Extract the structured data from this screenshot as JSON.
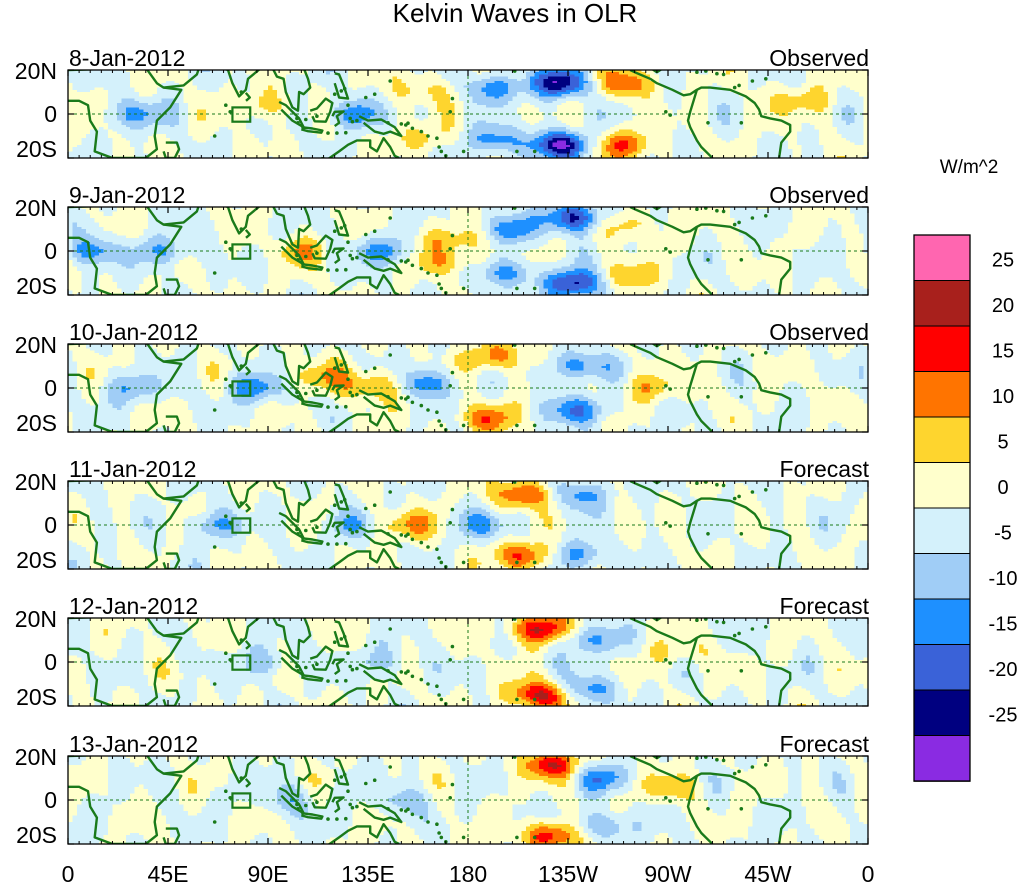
{
  "chart_data": {
    "type": "heatmap",
    "title": "Kelvin Waves in OLR",
    "variable": "OLR anomaly filtered for Kelvin waves",
    "units": "W/m^2",
    "x_ticks": [
      "0",
      "45E",
      "90E",
      "135E",
      "180",
      "135W",
      "90W",
      "45W",
      "0"
    ],
    "x_tick_lon": [
      0,
      45,
      90,
      135,
      180,
      225,
      270,
      315,
      360
    ],
    "y_ticks": [
      "20N",
      "0",
      "20S"
    ],
    "y_tick_lat": [
      20,
      0,
      -20
    ],
    "xlim": [
      0,
      360
    ],
    "ylim": [
      -20,
      20
    ],
    "reference_lines": [
      "equator (dashed)",
      "180 meridian (dashed)"
    ],
    "panels": [
      {
        "date": "8-Jan-2012",
        "status": "Observed",
        "anomalies": [
          {
            "lon": 222,
            "lat": 14,
            "value": -24
          },
          {
            "lon": 222,
            "lat": -14,
            "value": -24
          },
          {
            "lon": 192,
            "lat": 12,
            "value": -13
          },
          {
            "lon": 192,
            "lat": -12,
            "value": -13
          },
          {
            "lon": 250,
            "lat": 14,
            "value": 14
          },
          {
            "lon": 250,
            "lat": -14,
            "value": 14
          },
          {
            "lon": 160,
            "lat": 11,
            "value": 7
          },
          {
            "lon": 160,
            "lat": -11,
            "value": 7
          },
          {
            "lon": 128,
            "lat": 0,
            "value": -12
          },
          {
            "lon": 88,
            "lat": 4,
            "value": 7
          },
          {
            "lon": 32,
            "lat": 0,
            "value": -11
          },
          {
            "lon": 330,
            "lat": 6,
            "value": 8
          }
        ]
      },
      {
        "date": "9-Jan-2012",
        "status": "Observed",
        "anomalies": [
          {
            "lon": 228,
            "lat": 15,
            "value": -22
          },
          {
            "lon": 228,
            "lat": -15,
            "value": -22
          },
          {
            "lon": 198,
            "lat": 10,
            "value": -12
          },
          {
            "lon": 198,
            "lat": -10,
            "value": -12
          },
          {
            "lon": 172,
            "lat": 5,
            "value": 9
          },
          {
            "lon": 172,
            "lat": -5,
            "value": 9
          },
          {
            "lon": 252,
            "lat": 12,
            "value": 9
          },
          {
            "lon": 252,
            "lat": -12,
            "value": 9
          },
          {
            "lon": 140,
            "lat": 0,
            "value": -12
          },
          {
            "lon": 105,
            "lat": 0,
            "value": 8
          },
          {
            "lon": 45,
            "lat": 0,
            "value": -10
          },
          {
            "lon": 12,
            "lat": 0,
            "value": -12
          }
        ]
      },
      {
        "date": "10-Jan-2012",
        "status": "Observed",
        "anomalies": [
          {
            "lon": 192,
            "lat": 14,
            "value": 13
          },
          {
            "lon": 188,
            "lat": -14,
            "value": 13
          },
          {
            "lon": 230,
            "lat": 10,
            "value": -14
          },
          {
            "lon": 230,
            "lat": -10,
            "value": -14
          },
          {
            "lon": 162,
            "lat": 2,
            "value": -13
          },
          {
            "lon": 137,
            "lat": 1,
            "value": 12
          },
          {
            "lon": 112,
            "lat": 5,
            "value": 9
          },
          {
            "lon": 85,
            "lat": 0,
            "value": -13
          },
          {
            "lon": 30,
            "lat": 0,
            "value": -10
          },
          {
            "lon": 262,
            "lat": 0,
            "value": 8
          }
        ]
      },
      {
        "date": "11-Jan-2012",
        "status": "Forecast",
        "anomalies": [
          {
            "lon": 206,
            "lat": 14,
            "value": 17
          },
          {
            "lon": 206,
            "lat": -14,
            "value": 17
          },
          {
            "lon": 230,
            "lat": 14,
            "value": -13
          },
          {
            "lon": 230,
            "lat": -14,
            "value": -13
          },
          {
            "lon": 188,
            "lat": 0,
            "value": -10
          },
          {
            "lon": 152,
            "lat": 0,
            "value": 11
          },
          {
            "lon": 128,
            "lat": 0,
            "value": -8
          },
          {
            "lon": 65,
            "lat": 0,
            "value": -10
          }
        ]
      },
      {
        "date": "12-Jan-2012",
        "status": "Forecast",
        "anomalies": [
          {
            "lon": 212,
            "lat": 15,
            "value": 21
          },
          {
            "lon": 212,
            "lat": -15,
            "value": 21
          },
          {
            "lon": 235,
            "lat": 10,
            "value": -12
          },
          {
            "lon": 235,
            "lat": -12,
            "value": -12
          },
          {
            "lon": 275,
            "lat": 4,
            "value": 6
          },
          {
            "lon": 142,
            "lat": 0,
            "value": -7
          },
          {
            "lon": 90,
            "lat": 0,
            "value": -8
          }
        ]
      },
      {
        "date": "13-Jan-2012",
        "status": "Forecast",
        "anomalies": [
          {
            "lon": 218,
            "lat": 16,
            "value": 19
          },
          {
            "lon": 218,
            "lat": -16,
            "value": 19
          },
          {
            "lon": 240,
            "lat": 10,
            "value": -12
          },
          {
            "lon": 240,
            "lat": -12,
            "value": -12
          },
          {
            "lon": 270,
            "lat": 6,
            "value": 8
          },
          {
            "lon": 150,
            "lat": 0,
            "value": -7
          },
          {
            "lon": 100,
            "lat": 0,
            "value": -7
          }
        ]
      }
    ],
    "colorbar": {
      "label": "W/m^2",
      "levels": [
        "25",
        "20",
        "15",
        "10",
        "5",
        "0",
        "-5",
        "-10",
        "-15",
        "-20",
        "-25"
      ],
      "bin_lower_bounds": [
        -1000,
        -25,
        -20,
        -15,
        -10,
        -5,
        0,
        5,
        10,
        15,
        20,
        25
      ],
      "colors": [
        "#8a2be2",
        "#000080",
        "#3a62d8",
        "#1e90ff",
        "#a0cdf6",
        "#d4f1fb",
        "#ffffcc",
        "#fed52e",
        "#ff7400",
        "#ff0000",
        "#a8201c",
        "#ff66b0"
      ]
    }
  }
}
